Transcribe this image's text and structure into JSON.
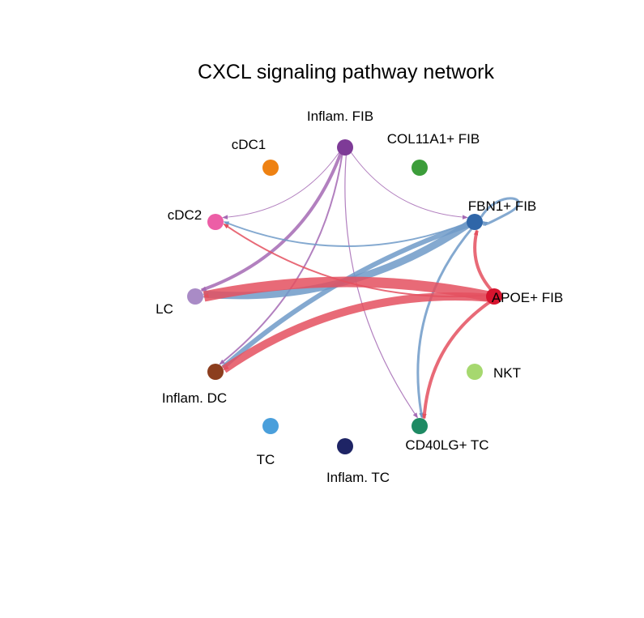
{
  "title": "CXCL signaling pathway network",
  "nodes": [
    {
      "id": "inflam_fib",
      "label": "Inflam. FIB",
      "color": "#7E3B97"
    },
    {
      "id": "col11a1_fib",
      "label": "COL11A1+ FIB",
      "color": "#3C9D3A"
    },
    {
      "id": "fbn1_fib",
      "label": "FBN1+ FIB",
      "color": "#2F66A8"
    },
    {
      "id": "apoe_fib",
      "label": "APOE+ FIB",
      "color": "#D6142E"
    },
    {
      "id": "nkt",
      "label": "NKT",
      "color": "#A6D86F"
    },
    {
      "id": "cd40lg_tc",
      "label": "CD40LG+ TC",
      "color": "#1E8A63"
    },
    {
      "id": "inflam_tc",
      "label": "Inflam. TC",
      "color": "#1E2465"
    },
    {
      "id": "tc",
      "label": "TC",
      "color": "#4A9FDB"
    },
    {
      "id": "inflam_dc",
      "label": "Inflam. DC",
      "color": "#8C3E1E"
    },
    {
      "id": "lc",
      "label": "LC",
      "color": "#A98BC6"
    },
    {
      "id": "cdc2",
      "label": "cDC2",
      "color": "#EC5EA6"
    },
    {
      "id": "cdc1",
      "label": "cDC1",
      "color": "#EE8112"
    }
  ],
  "edge_colors": {
    "inflam_fib": "#A56AB4",
    "fbn1_fib": "#6F9AC8",
    "apoe_fib": "#E4505F"
  },
  "edges": [
    {
      "source": "inflam_fib",
      "target": "cdc2",
      "weight": 1
    },
    {
      "source": "inflam_fib",
      "target": "lc",
      "weight": 4
    },
    {
      "source": "inflam_fib",
      "target": "inflam_dc",
      "weight": 2
    },
    {
      "source": "inflam_fib",
      "target": "fbn1_fib",
      "weight": 1
    },
    {
      "source": "inflam_fib",
      "target": "cd40lg_tc",
      "weight": 1.2
    },
    {
      "source": "fbn1_fib",
      "target": "fbn1_fib",
      "weight": 3
    },
    {
      "source": "fbn1_fib",
      "target": "cdc2",
      "weight": 2
    },
    {
      "source": "fbn1_fib",
      "target": "lc",
      "weight": 9
    },
    {
      "source": "fbn1_fib",
      "target": "inflam_dc",
      "weight": 6
    },
    {
      "source": "fbn1_fib",
      "target": "cd40lg_tc",
      "weight": 3
    },
    {
      "source": "apoe_fib",
      "target": "cdc2",
      "weight": 2
    },
    {
      "source": "apoe_fib",
      "target": "lc",
      "weight": 13
    },
    {
      "source": "apoe_fib",
      "target": "inflam_dc",
      "weight": 10
    },
    {
      "source": "apoe_fib",
      "target": "cd40lg_tc",
      "weight": 4
    },
    {
      "source": "apoe_fib",
      "target": "fbn1_fib",
      "weight": 4
    }
  ]
}
